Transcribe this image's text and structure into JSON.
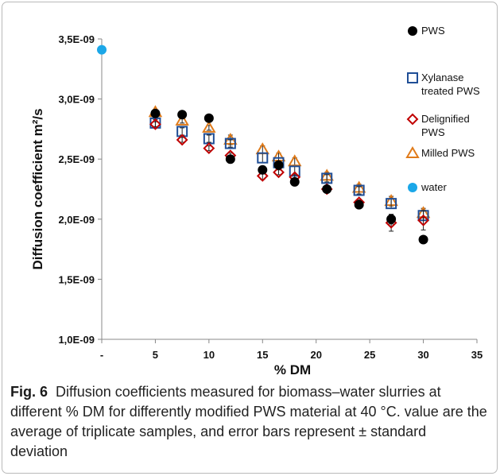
{
  "figure": {
    "label": "Fig. 6",
    "caption": "Diffusion coefficients measured for biomass–water slurries at different % DM for differently modified PWS material at 40 °C. value are the average of triplicate samples, and error bars represent ± standard deviation"
  },
  "chart_data": {
    "type": "scatter",
    "xlabel": "% DM",
    "ylabel": "Diffusion coefficient m²/s",
    "x_ticks": [
      {
        "value": 0,
        "label": "-"
      },
      {
        "value": 5,
        "label": "5"
      },
      {
        "value": 10,
        "label": "10"
      },
      {
        "value": 15,
        "label": "15"
      },
      {
        "value": 20,
        "label": "20"
      },
      {
        "value": 25,
        "label": "25"
      },
      {
        "value": 30,
        "label": "30"
      },
      {
        "value": 35,
        "label": "35"
      }
    ],
    "y_ticks": [
      {
        "value": 1e-09,
        "label": "1,0E-09"
      },
      {
        "value": 1.5e-09,
        "label": "1,5E-09"
      },
      {
        "value": 2e-09,
        "label": "2,0E-09"
      },
      {
        "value": 2.5e-09,
        "label": "2,5E-09"
      },
      {
        "value": 3e-09,
        "label": "3,0E-09"
      },
      {
        "value": 3.5e-09,
        "label": "3,5E-09"
      }
    ],
    "xlim": [
      0,
      35
    ],
    "ylim": [
      1e-09,
      3.5e-09
    ],
    "grid": false,
    "legend_position": "right",
    "series": [
      {
        "name": "PWS",
        "marker": "circle-filled",
        "color": "#000000",
        "points": [
          {
            "x": 5,
            "y": 2.88e-09,
            "err": 2e-11
          },
          {
            "x": 7.5,
            "y": 2.87e-09,
            "err": 2e-11
          },
          {
            "x": 10,
            "y": 2.84e-09,
            "err": 2e-11
          },
          {
            "x": 12,
            "y": 2.5e-09,
            "err": 2e-11
          },
          {
            "x": 15,
            "y": 2.41e-09,
            "err": 2e-11
          },
          {
            "x": 16.5,
            "y": 2.45e-09,
            "err": 2e-11
          },
          {
            "x": 18,
            "y": 2.31e-09,
            "err": 2e-11
          },
          {
            "x": 21,
            "y": 2.25e-09,
            "err": 2e-11
          },
          {
            "x": 24,
            "y": 2.12e-09,
            "err": 2e-11
          },
          {
            "x": 27,
            "y": 2e-09,
            "err": 4e-11
          },
          {
            "x": 30,
            "y": 1.83e-09,
            "err": 2e-11
          }
        ]
      },
      {
        "name": "Xylanase treated PWS",
        "marker": "square-open",
        "color": "#1f4e96",
        "points": [
          {
            "x": 5,
            "y": 2.8e-09,
            "err": 3e-11
          },
          {
            "x": 7.5,
            "y": 2.73e-09,
            "err": 3e-11
          },
          {
            "x": 10,
            "y": 2.67e-09,
            "err": 3e-11
          },
          {
            "x": 12,
            "y": 2.63e-09,
            "err": 3e-11
          },
          {
            "x": 15,
            "y": 2.51e-09,
            "err": 4e-11
          },
          {
            "x": 16.5,
            "y": 2.47e-09,
            "err": 4e-11
          },
          {
            "x": 18,
            "y": 2.4e-09,
            "err": 4e-11
          },
          {
            "x": 21,
            "y": 2.34e-09,
            "err": 3e-11
          },
          {
            "x": 24,
            "y": 2.24e-09,
            "err": 3e-11
          },
          {
            "x": 27,
            "y": 2.13e-09,
            "err": 4e-11
          },
          {
            "x": 30,
            "y": 2.03e-09,
            "err": 4e-11
          }
        ]
      },
      {
        "name": "Delignified PWS",
        "marker": "diamond-open",
        "color": "#c00000",
        "points": [
          {
            "x": 5,
            "y": 2.79e-09,
            "err": 2e-11
          },
          {
            "x": 7.5,
            "y": 2.66e-09,
            "err": 2e-11
          },
          {
            "x": 10,
            "y": 2.59e-09,
            "err": 2e-11
          },
          {
            "x": 12,
            "y": 2.53e-09,
            "err": 2e-11
          },
          {
            "x": 15,
            "y": 2.36e-09,
            "err": 3e-11
          },
          {
            "x": 16.5,
            "y": 2.39e-09,
            "err": 2e-11
          },
          {
            "x": 18,
            "y": 2.35e-09,
            "err": 2e-11
          },
          {
            "x": 21,
            "y": 2.25e-09,
            "err": 2e-11
          },
          {
            "x": 24,
            "y": 2.14e-09,
            "err": 2e-11
          },
          {
            "x": 27,
            "y": 1.97e-09,
            "err": 7e-11
          },
          {
            "x": 30,
            "y": 1.99e-09,
            "err": 8e-11
          }
        ]
      },
      {
        "name": "Milled PWS",
        "marker": "triangle-open",
        "color": "#e07b1a",
        "points": [
          {
            "x": 5,
            "y": 2.89e-09,
            "err": 2e-11
          },
          {
            "x": 7.5,
            "y": 2.82e-09,
            "err": 2e-11
          },
          {
            "x": 10,
            "y": 2.76e-09,
            "err": 2e-11
          },
          {
            "x": 12,
            "y": 2.66e-09,
            "err": 4e-11
          },
          {
            "x": 15,
            "y": 2.58e-09,
            "err": 3e-11
          },
          {
            "x": 16.5,
            "y": 2.52e-09,
            "err": 3e-11
          },
          {
            "x": 18,
            "y": 2.48e-09,
            "err": 3e-11
          },
          {
            "x": 21,
            "y": 2.36e-09,
            "err": 3e-11
          },
          {
            "x": 24,
            "y": 2.26e-09,
            "err": 3e-11
          },
          {
            "x": 27,
            "y": 2.15e-09,
            "err": 4e-11
          },
          {
            "x": 30,
            "y": 2.05e-09,
            "err": 4e-11
          }
        ]
      },
      {
        "name": "water",
        "marker": "circle-filled",
        "color": "#1ba7e8",
        "points": [
          {
            "x": 0,
            "y": 3.41e-09
          }
        ]
      }
    ],
    "legend": [
      {
        "lines": [
          "PWS"
        ],
        "marker": "circle-filled",
        "color": "#000000"
      },
      {
        "lines": [
          "Xylanase",
          "treated PWS"
        ],
        "marker": "square-open",
        "color": "#1f4e96"
      },
      {
        "lines": [
          "Delignified",
          "PWS"
        ],
        "marker": "diamond-open",
        "color": "#c00000"
      },
      {
        "lines": [
          "Milled PWS"
        ],
        "marker": "triangle-open",
        "color": "#e07b1a"
      },
      {
        "lines": [
          "water"
        ],
        "marker": "circle-filled",
        "color": "#1ba7e8"
      }
    ]
  }
}
